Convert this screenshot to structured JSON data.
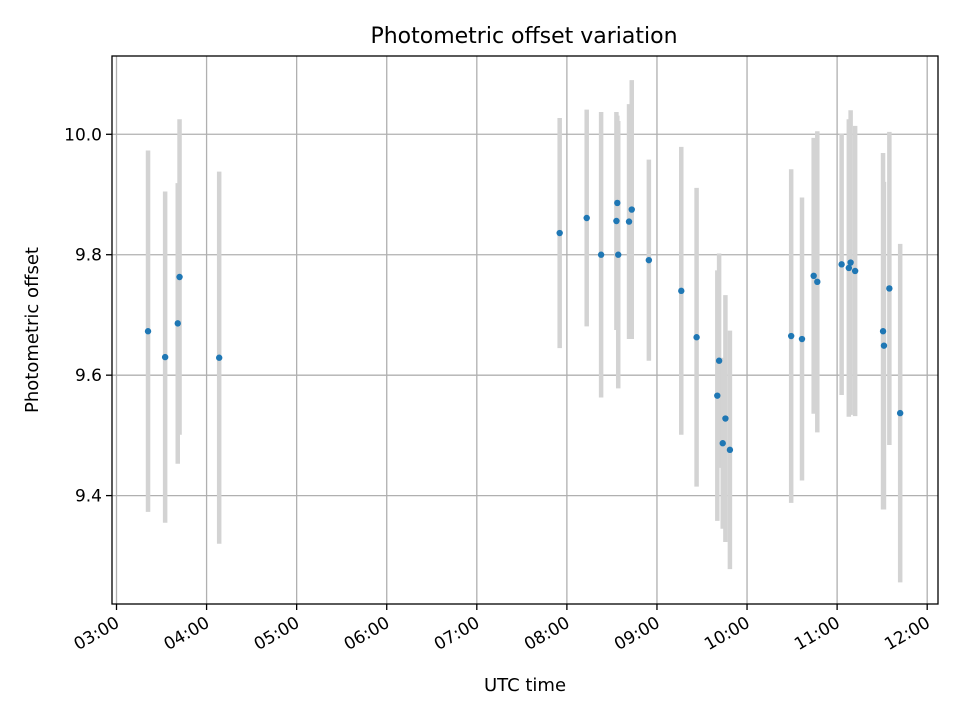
{
  "chart_data": {
    "type": "scatter",
    "title": "Photometric offset variation",
    "xlabel": "UTC time",
    "ylabel": "Photometric offset",
    "x_unit": "UTC hour of day",
    "xlim": [
      2.95,
      12.12
    ],
    "ylim": [
      9.22,
      10.13
    ],
    "x_ticks": [
      3,
      4,
      5,
      6,
      7,
      8,
      9,
      10,
      11,
      12
    ],
    "x_tick_labels": [
      "03:00",
      "04:00",
      "05:00",
      "06:00",
      "07:00",
      "08:00",
      "09:00",
      "10:00",
      "11:00",
      "12:00"
    ],
    "y_ticks": [
      9.4,
      9.6,
      9.8,
      10.0
    ],
    "y_tick_labels": [
      "9.4",
      "9.6",
      "9.8",
      "10.0"
    ],
    "grid": true,
    "colors": {
      "point": "#1f77b4",
      "errorbar": "#d3d3d3"
    },
    "series": [
      {
        "points": [
          {
            "x": 3.35,
            "y": 9.673,
            "yerr": 0.3
          },
          {
            "x": 3.54,
            "y": 9.63,
            "yerr": 0.275
          },
          {
            "x": 3.68,
            "y": 9.686,
            "yerr": 0.233
          },
          {
            "x": 3.7,
            "y": 9.763,
            "yerr": 0.262
          },
          {
            "x": 4.14,
            "y": 9.629,
            "yerr": 0.309
          },
          {
            "x": 7.92,
            "y": 9.836,
            "yerr": 0.191
          },
          {
            "x": 8.22,
            "y": 9.861,
            "yerr": 0.18
          },
          {
            "x": 8.38,
            "y": 9.8,
            "yerr": 0.237
          },
          {
            "x": 8.55,
            "y": 9.856,
            "yerr": 0.181
          },
          {
            "x": 8.56,
            "y": 9.886,
            "yerr": 0.145
          },
          {
            "x": 8.57,
            "y": 9.8,
            "yerr": 0.222
          },
          {
            "x": 8.69,
            "y": 9.855,
            "yerr": 0.195
          },
          {
            "x": 8.72,
            "y": 9.875,
            "yerr": 0.215
          },
          {
            "x": 8.91,
            "y": 9.791,
            "yerr": 0.167
          },
          {
            "x": 9.27,
            "y": 9.74,
            "yerr": 0.239
          },
          {
            "x": 9.44,
            "y": 9.663,
            "yerr": 0.248
          },
          {
            "x": 9.67,
            "y": 9.566,
            "yerr": 0.208
          },
          {
            "x": 9.69,
            "y": 9.624,
            "yerr": 0.178
          },
          {
            "x": 9.73,
            "y": 9.487,
            "yerr": 0.142
          },
          {
            "x": 9.76,
            "y": 9.528,
            "yerr": 0.205
          },
          {
            "x": 9.81,
            "y": 9.476,
            "yerr": 0.198
          },
          {
            "x": 10.49,
            "y": 9.665,
            "yerr": 0.277
          },
          {
            "x": 10.61,
            "y": 9.66,
            "yerr": 0.235
          },
          {
            "x": 10.74,
            "y": 9.765,
            "yerr": 0.229
          },
          {
            "x": 10.78,
            "y": 9.755,
            "yerr": 0.25
          },
          {
            "x": 11.05,
            "y": 9.784,
            "yerr": 0.217
          },
          {
            "x": 11.13,
            "y": 9.778,
            "yerr": 0.247
          },
          {
            "x": 11.15,
            "y": 9.787,
            "yerr": 0.253
          },
          {
            "x": 11.2,
            "y": 9.773,
            "yerr": 0.241
          },
          {
            "x": 11.51,
            "y": 9.673,
            "yerr": 0.296
          },
          {
            "x": 11.52,
            "y": 9.649,
            "yerr": 0.272
          },
          {
            "x": 11.58,
            "y": 9.744,
            "yerr": 0.26
          },
          {
            "x": 11.7,
            "y": 9.537,
            "yerr": 0.281
          }
        ]
      }
    ]
  }
}
